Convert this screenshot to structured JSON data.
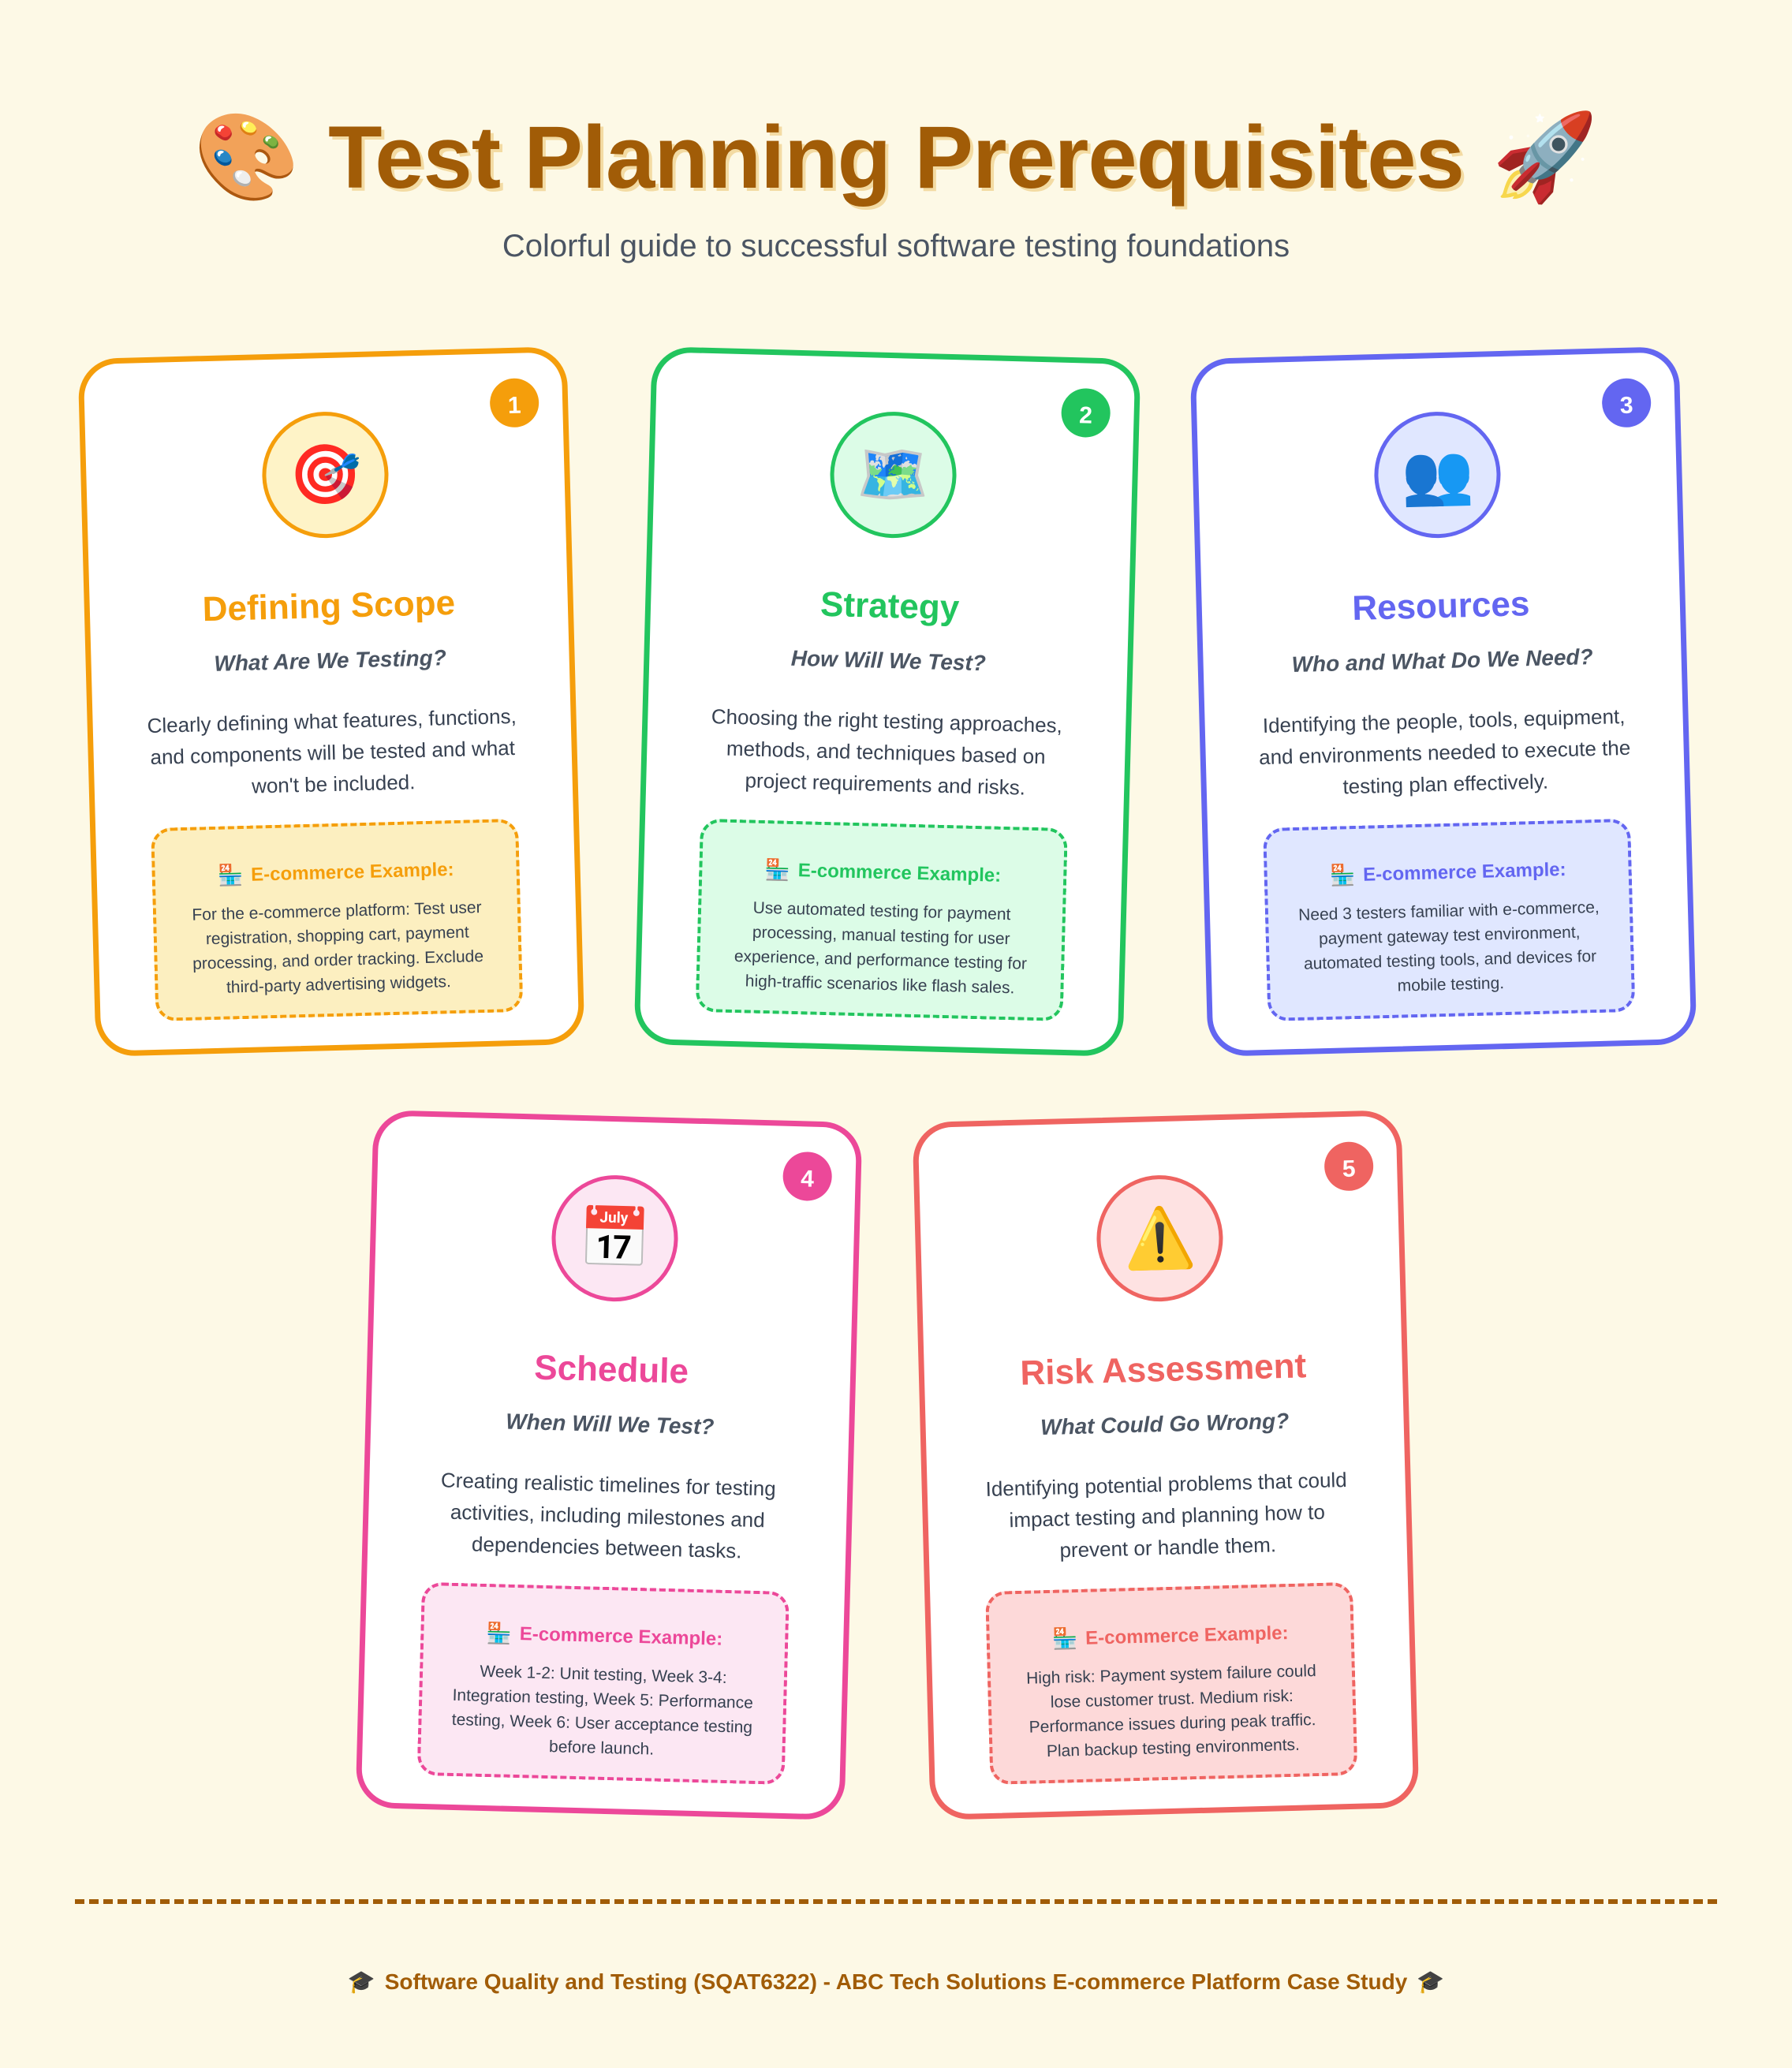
{
  "header": {
    "title": "Test Planning Prerequisites",
    "left_icon": "palette-icon",
    "right_icon": "rocket-icon",
    "left_glyph": "🎨",
    "right_glyph": "🚀",
    "subtitle": "Colorful guide to successful software testing foundations"
  },
  "cards": [
    {
      "number": "1",
      "icon": "target-icon",
      "glyph": "🎯",
      "title": "Defining Scope",
      "subtitle": "What Are We Testing?",
      "description": "Clearly defining what features, functions, and components will be tested and what won't be included.",
      "example_icon": "cash-register-icon",
      "example_glyph": "🏪",
      "example_heading": "E-commerce Example:",
      "example_text": "For the e-commerce platform: Test user registration, shopping cart, payment processing, and order tracking. Exclude third-party advertising widgets.",
      "color": "#f59e0b"
    },
    {
      "number": "2",
      "icon": "world-map-icon",
      "glyph": "🗺️",
      "title": "Strategy",
      "subtitle": "How Will We Test?",
      "description": "Choosing the right testing approaches, methods, and techniques based on project requirements and risks.",
      "example_icon": "cash-register-icon",
      "example_glyph": "🏪",
      "example_heading": "E-commerce Example:",
      "example_text": "Use automated testing for payment processing, manual testing for user experience, and performance testing for high-traffic scenarios like flash sales.",
      "color": "#22c55e"
    },
    {
      "number": "3",
      "icon": "people-icon",
      "glyph": "👥",
      "title": "Resources",
      "subtitle": "Who and What Do We Need?",
      "description": "Identifying the people, tools, equipment, and environments needed to execute the testing plan effectively.",
      "example_icon": "cash-register-icon",
      "example_glyph": "🏪",
      "example_heading": "E-commerce Example:",
      "example_text": "Need 3 testers familiar with e-commerce, payment gateway test environment, automated testing tools, and devices for mobile testing.",
      "color": "#6366f1"
    },
    {
      "number": "4",
      "icon": "calendar-icon",
      "glyph": "📅",
      "title": "Schedule",
      "subtitle": "When Will We Test?",
      "description": "Creating realistic timelines for testing activities, including milestones and dependencies between tasks.",
      "example_icon": "cash-register-icon",
      "example_glyph": "🏪",
      "example_heading": "E-commerce Example:",
      "example_text": "Week 1-2: Unit testing, Week 3-4: Integration testing, Week 5: Performance testing, Week 6: User acceptance testing before launch.",
      "color": "#ec4899"
    },
    {
      "number": "5",
      "icon": "warning-icon",
      "glyph": "⚠️",
      "title": "Risk Assessment",
      "subtitle": "What Could Go Wrong?",
      "description": "Identifying potential problems that could impact testing and planning how to prevent or handle them.",
      "example_icon": "cash-register-icon",
      "example_glyph": "🏪",
      "example_heading": "E-commerce Example:",
      "example_text": "High risk: Payment system failure could lose customer trust. Medium risk: Performance issues during peak traffic. Plan backup testing environments.",
      "color": "#ef6461"
    }
  ],
  "footer": {
    "text": "Software Quality and Testing (SQAT6322) - ABC Tech Solutions E-commerce Platform Case Study",
    "icon": "graduation-cap-icon",
    "glyph": "🎓"
  }
}
